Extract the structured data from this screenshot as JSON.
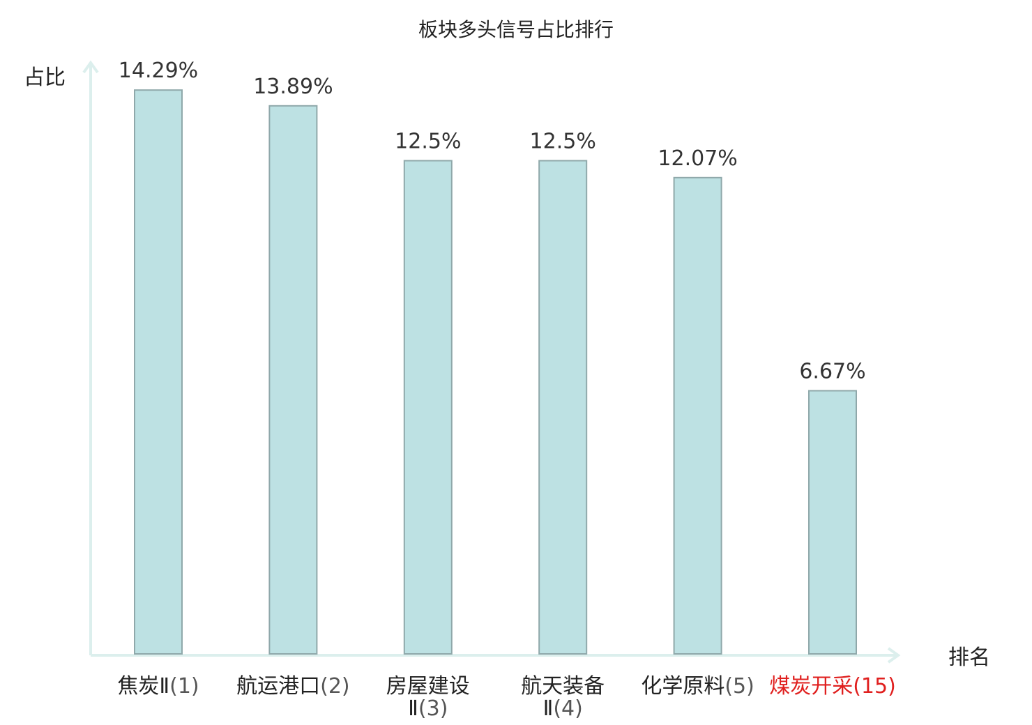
{
  "chart_data": {
    "type": "bar",
    "title": "板块多头信号占比排行",
    "ylabel": "占比",
    "xlabel": "排名",
    "ylim": [
      0,
      15
    ],
    "grid": false,
    "categories": [
      {
        "name": "焦炭Ⅱ",
        "rank": "(1)",
        "lines": [
          "焦炭Ⅱ(1)"
        ],
        "highlight": false
      },
      {
        "name": "航运港口",
        "rank": "(2)",
        "lines": [
          "航运港口(2)"
        ],
        "highlight": false
      },
      {
        "name": "房屋建设Ⅱ",
        "rank": "(3)",
        "lines": [
          "房屋建设",
          "Ⅱ(3)"
        ],
        "highlight": false
      },
      {
        "name": "航天装备Ⅱ",
        "rank": "(4)",
        "lines": [
          "航天装备",
          "Ⅱ(4)"
        ],
        "highlight": false
      },
      {
        "name": "化学原料",
        "rank": "(5)",
        "lines": [
          "化学原料(5)"
        ],
        "highlight": false
      },
      {
        "name": "煤炭开采",
        "rank": "(15)",
        "lines": [
          "煤炭开采(15)"
        ],
        "highlight": true
      }
    ],
    "values": [
      14.29,
      13.89,
      12.5,
      12.5,
      12.07,
      6.67
    ],
    "value_labels": [
      "14.29%",
      "13.89%",
      "12.5%",
      "12.5%",
      "12.07%",
      "6.67%"
    ],
    "colors": {
      "bar_fill": "#bde1e3",
      "bar_stroke": "#8fa8aa",
      "axis": "#dcefed",
      "highlight_text": "#e0201f"
    }
  }
}
